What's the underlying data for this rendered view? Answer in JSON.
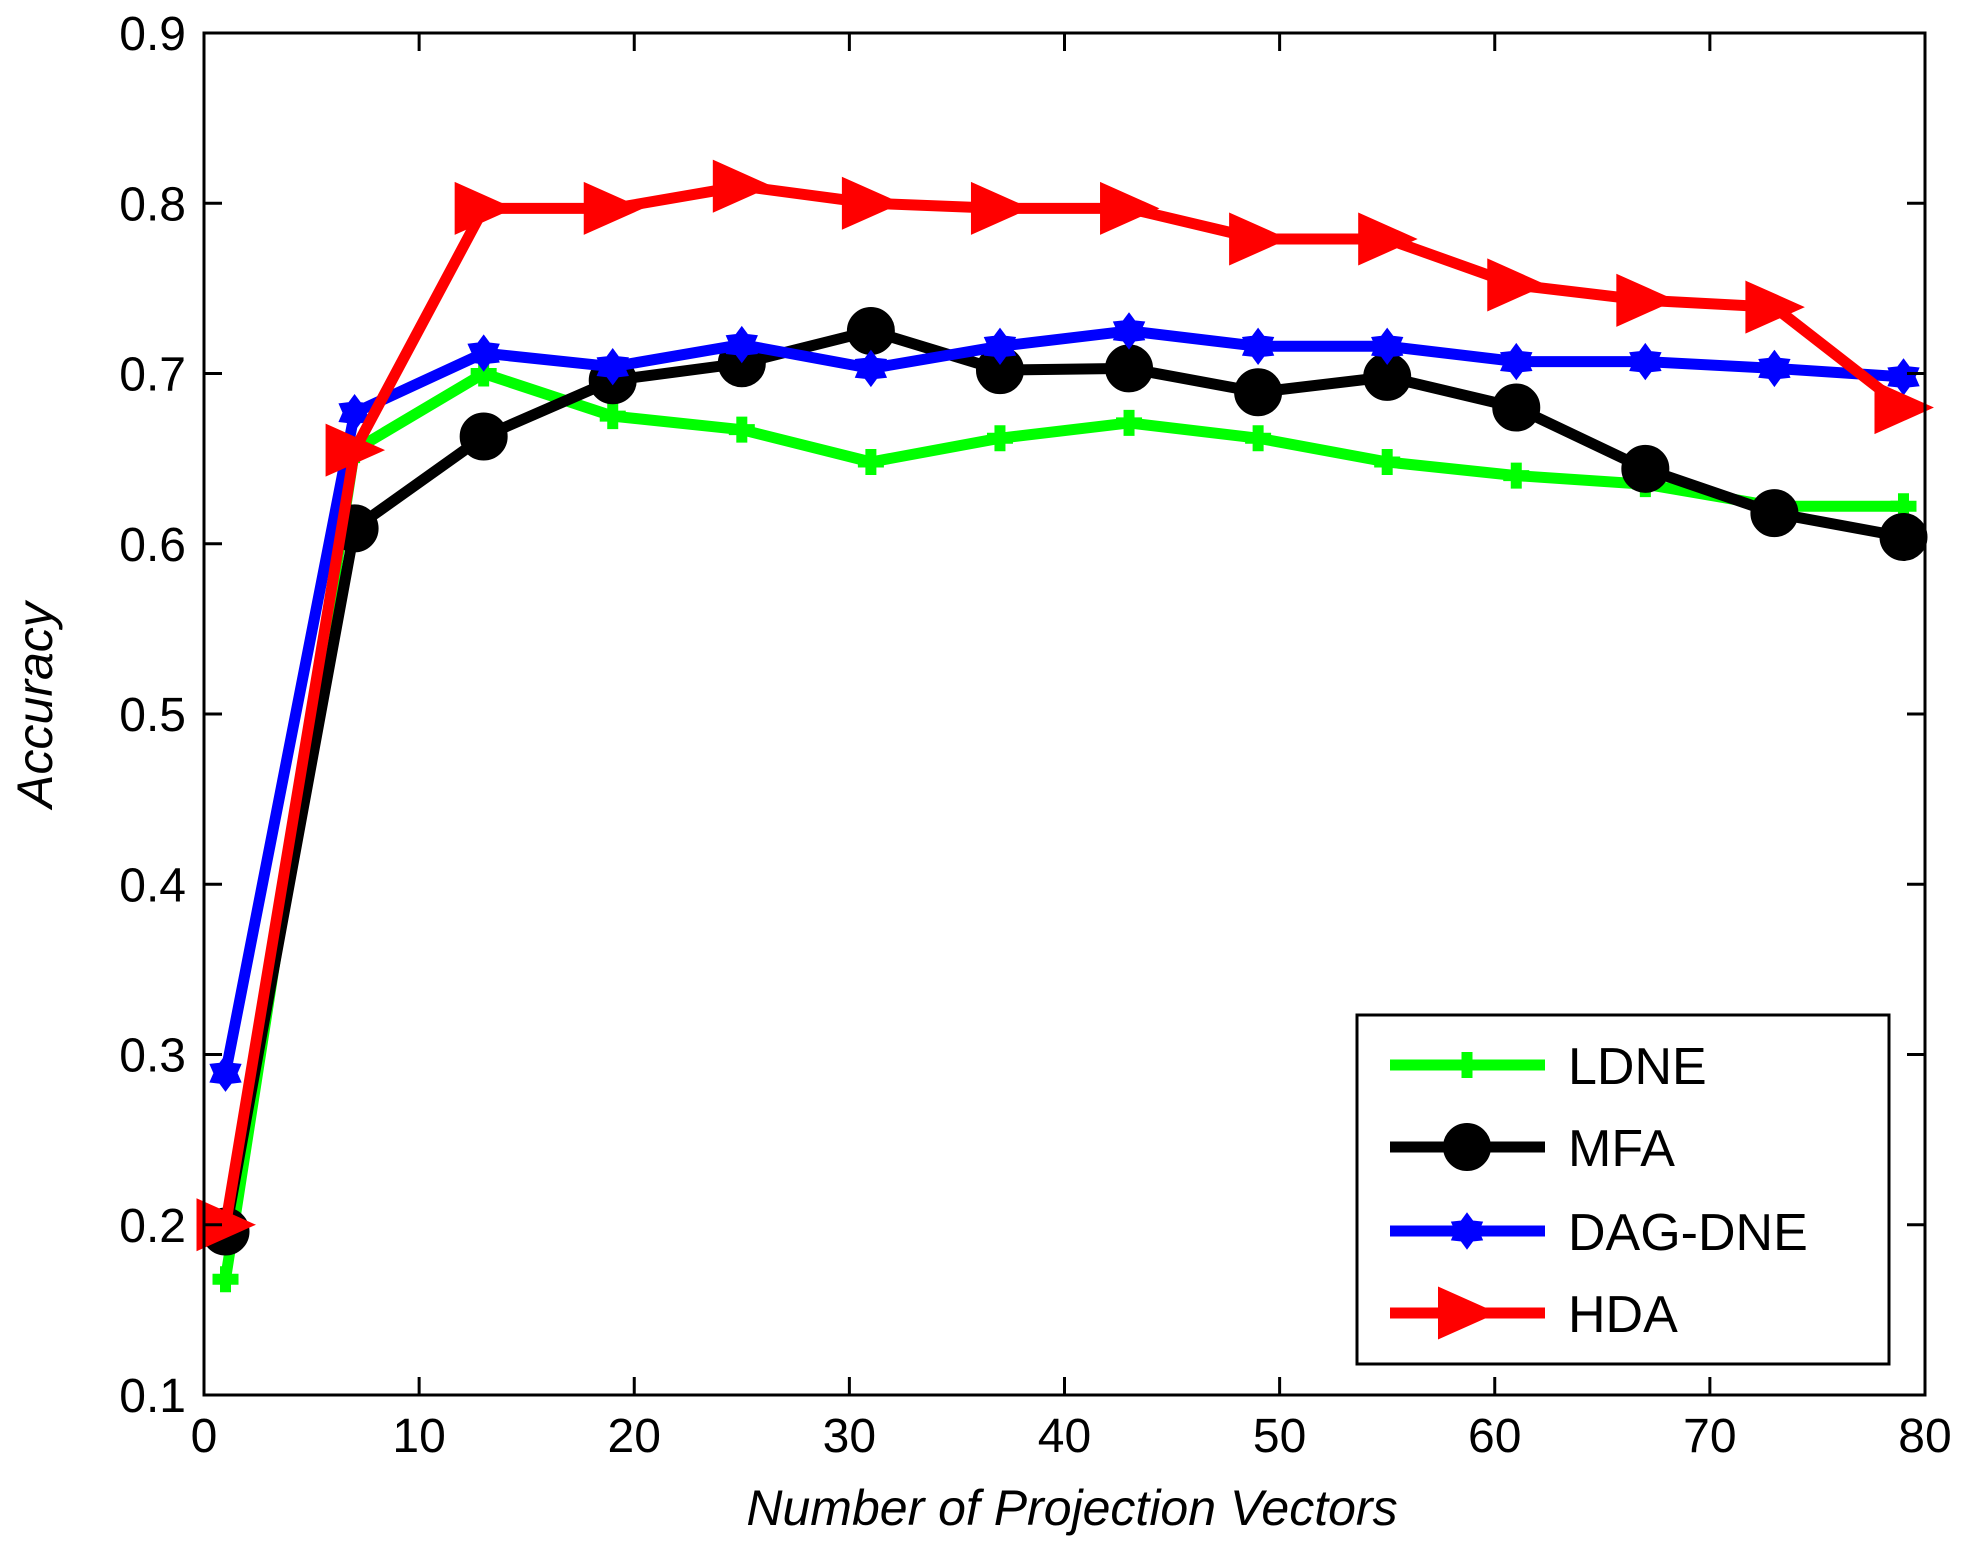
{
  "chart_data": {
    "type": "line",
    "title": "",
    "xlabel": "Number of Projection Vectors",
    "ylabel": "Accuracy",
    "xlim": [
      0,
      80
    ],
    "ylim": [
      0.1,
      0.9
    ],
    "xticks": [
      0,
      10,
      20,
      30,
      40,
      50,
      60,
      70,
      80
    ],
    "yticks": [
      0.1,
      0.2,
      0.3,
      0.4,
      0.5,
      0.6,
      0.7,
      0.8,
      0.9
    ],
    "xtick_labels": [
      "0",
      "10",
      "20",
      "30",
      "40",
      "50",
      "60",
      "70",
      "80"
    ],
    "ytick_labels": [
      "0.1",
      "0.2",
      "0.3",
      "0.4",
      "0.5",
      "0.6",
      "0.7",
      "0.8",
      "0.9"
    ],
    "grid": false,
    "legend_position": "bottom-right",
    "x": [
      1,
      7,
      13,
      19,
      25,
      31,
      37,
      43,
      49,
      55,
      61,
      67,
      73,
      79
    ],
    "series": [
      {
        "name": "LDNE",
        "color": "#00ff00",
        "marker": "plus",
        "values": [
          0.168,
          0.655,
          0.7,
          0.675,
          0.667,
          0.648,
          0.662,
          0.671,
          0.662,
          0.648,
          0.64,
          0.635,
          0.622,
          0.622
        ]
      },
      {
        "name": "MFA",
        "color": "#000000",
        "marker": "circle",
        "values": [
          0.196,
          0.609,
          0.663,
          0.696,
          0.706,
          0.725,
          0.702,
          0.703,
          0.689,
          0.698,
          0.68,
          0.644,
          0.618,
          0.604
        ]
      },
      {
        "name": "DAG-DNE",
        "color": "#0000ff",
        "marker": "star",
        "values": [
          0.289,
          0.677,
          0.712,
          0.704,
          0.717,
          0.703,
          0.716,
          0.725,
          0.716,
          0.716,
          0.707,
          0.707,
          0.703,
          0.698
        ]
      },
      {
        "name": "HDA",
        "color": "#ff0000",
        "marker": "triangle-right",
        "values": [
          0.2,
          0.655,
          0.797,
          0.797,
          0.81,
          0.8,
          0.797,
          0.797,
          0.779,
          0.779,
          0.752,
          0.743,
          0.739,
          0.68
        ]
      }
    ]
  }
}
